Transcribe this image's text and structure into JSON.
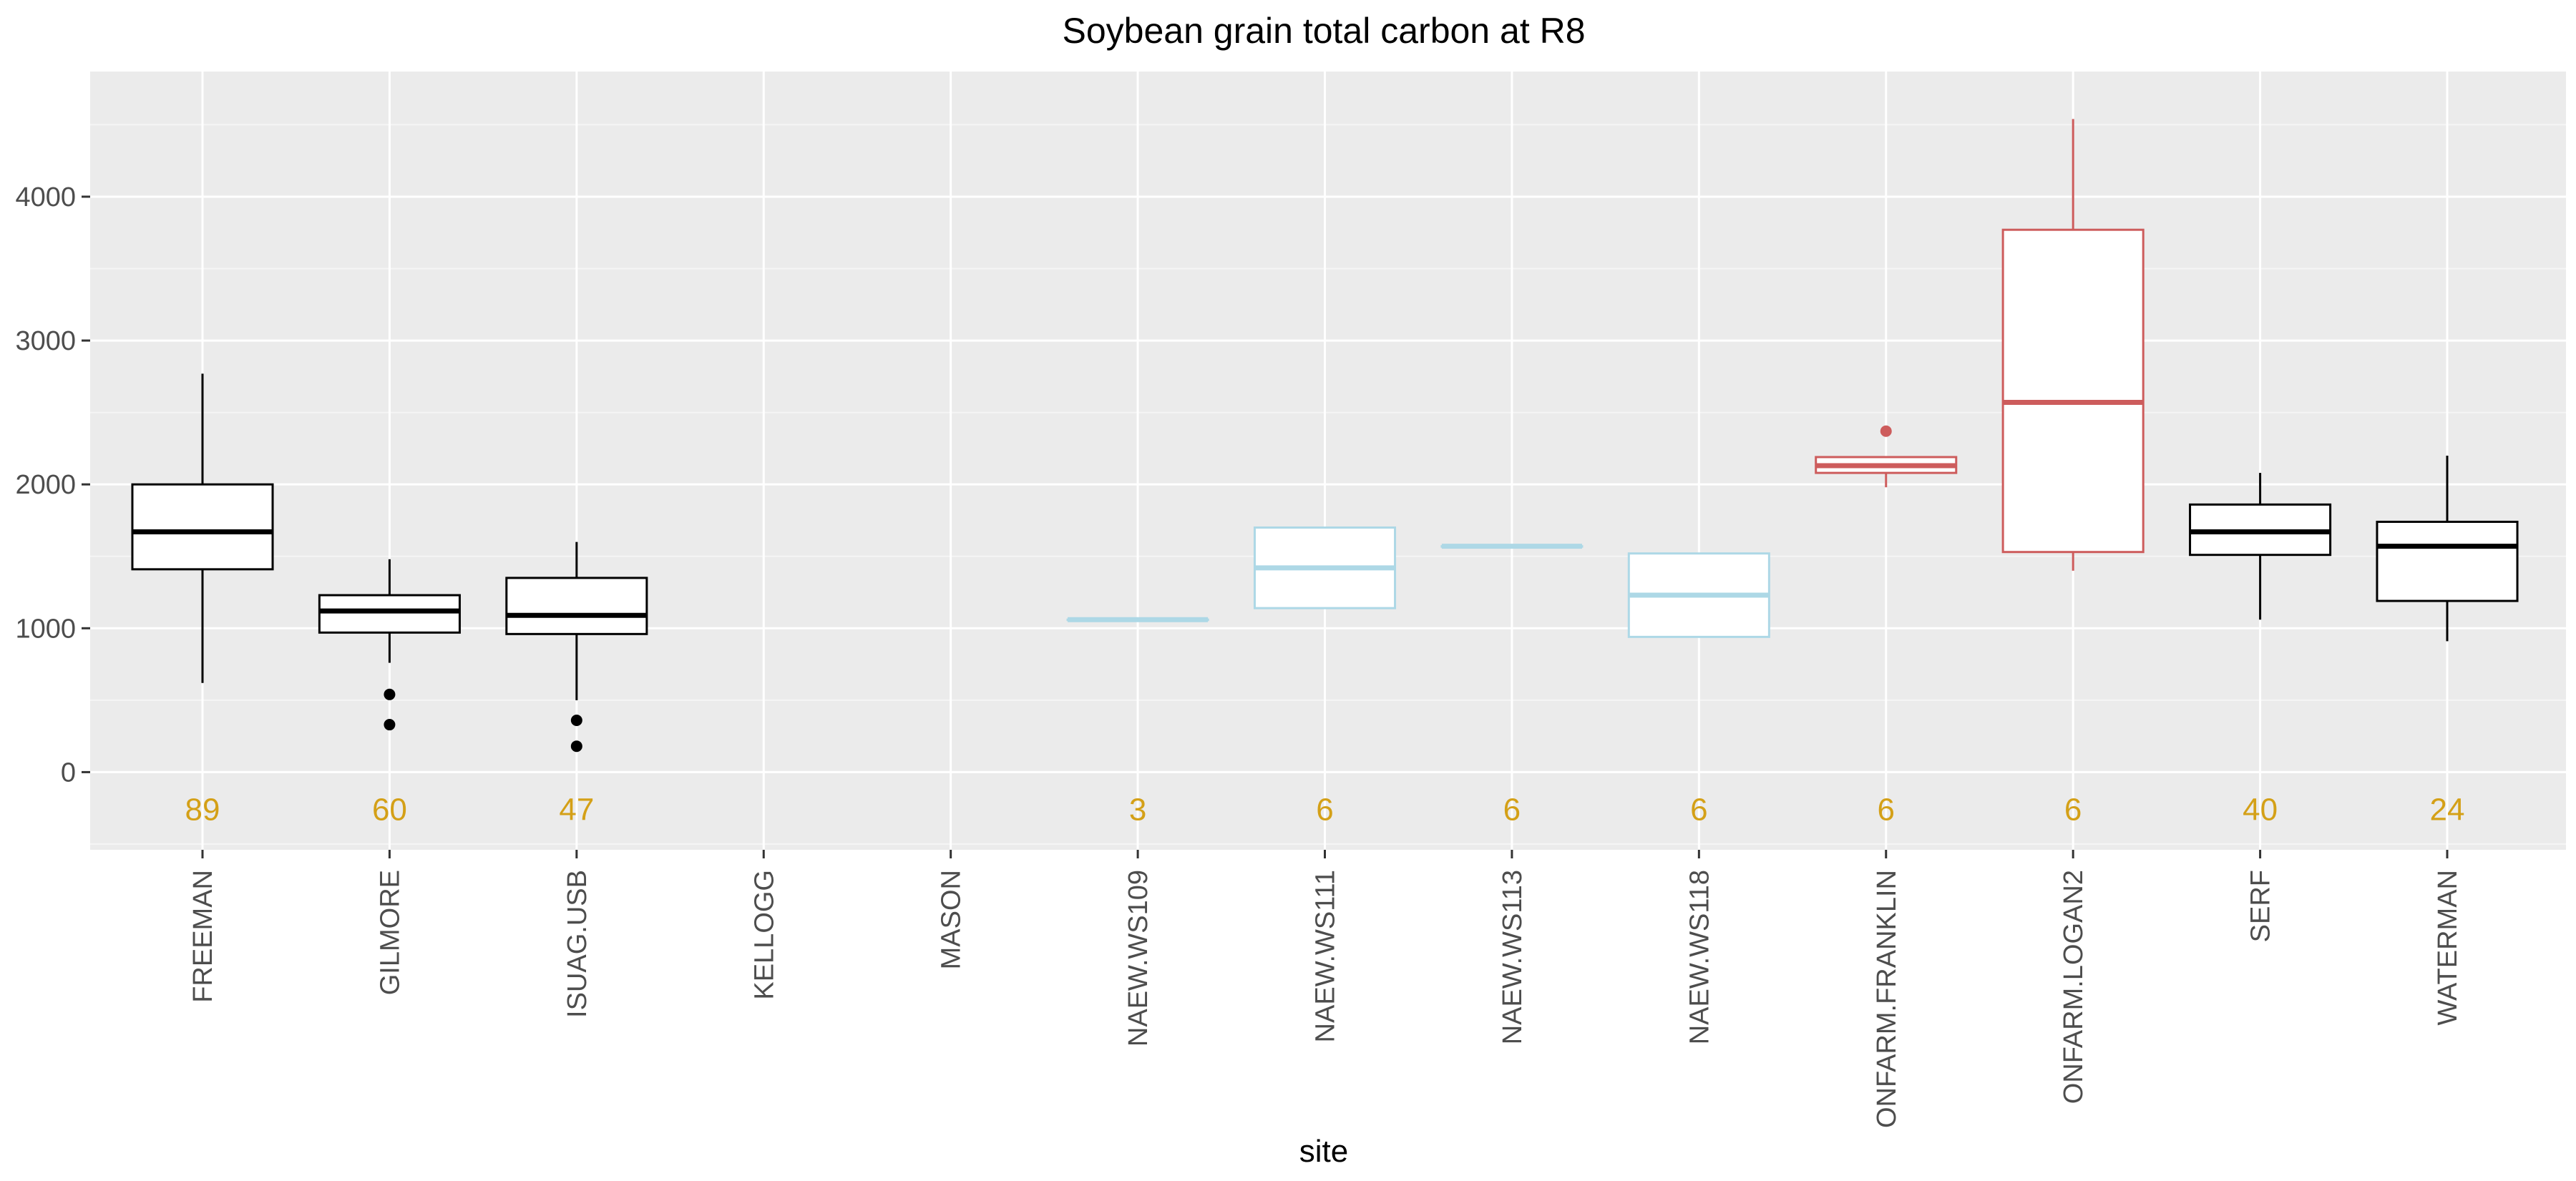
{
  "chart_data": {
    "type": "box",
    "title": "Soybean grain total carbon at R8",
    "xlabel": "site",
    "ylabel": "",
    "ylim": [
      -540,
      4870
    ],
    "yticks": [
      0,
      1000,
      2000,
      3000,
      4000
    ],
    "grid": true,
    "legend": "none",
    "colors": {
      "panel": "#ebebeb",
      "grid_major": "#ffffff",
      "grid_minor": "#f5f5f5",
      "count_text": "#d4a017",
      "tick_text": "#4d4d4d"
    },
    "categories": [
      "FREEMAN",
      "GILMORE",
      "ISUAG.USB",
      "KELLOGG",
      "MASON",
      "NAEW.WS109",
      "NAEW.WS111",
      "NAEW.WS113",
      "NAEW.WS118",
      "ONFARM.FRANKLIN",
      "ONFARM.LOGAN2",
      "SERF",
      "WATERMAN"
    ],
    "boxes": [
      {
        "site": "FREEMAN",
        "n": "89",
        "color": "#000000",
        "min": 620,
        "q1": 1410,
        "median": 1670,
        "q3": 2000,
        "max": 2770,
        "outliers": []
      },
      {
        "site": "GILMORE",
        "n": "60",
        "color": "#000000",
        "min": 760,
        "q1": 970,
        "median": 1120,
        "q3": 1230,
        "max": 1480,
        "outliers": [
          540,
          330
        ]
      },
      {
        "site": "ISUAG.USB",
        "n": "47",
        "color": "#000000",
        "min": 500,
        "q1": 960,
        "median": 1090,
        "q3": 1350,
        "max": 1600,
        "outliers": [
          360,
          180
        ]
      },
      {
        "site": "KELLOGG",
        "n": null,
        "color": null
      },
      {
        "site": "MASON",
        "n": null,
        "color": null
      },
      {
        "site": "NAEW.WS109",
        "n": "3",
        "color": "#add8e6",
        "min": 1060,
        "q1": 1060,
        "median": 1060,
        "q3": 1060,
        "max": 1060,
        "outliers": []
      },
      {
        "site": "NAEW.WS111",
        "n": "6",
        "color": "#add8e6",
        "min": 1140,
        "q1": 1140,
        "median": 1420,
        "q3": 1700,
        "max": 1700,
        "outliers": []
      },
      {
        "site": "NAEW.WS113",
        "n": "6",
        "color": "#add8e6",
        "min": 1570,
        "q1": 1570,
        "median": 1570,
        "q3": 1570,
        "max": 1570,
        "outliers": []
      },
      {
        "site": "NAEW.WS118",
        "n": "6",
        "color": "#add8e6",
        "min": 940,
        "q1": 940,
        "median": 1230,
        "q3": 1520,
        "max": 1520,
        "outliers": []
      },
      {
        "site": "ONFARM.FRANKLIN",
        "n": "6",
        "color": "#cd5c5c",
        "min": 1980,
        "q1": 2080,
        "median": 2130,
        "q3": 2190,
        "max": 2190,
        "outliers": [
          2370
        ]
      },
      {
        "site": "ONFARM.LOGAN2",
        "n": "6",
        "color": "#cd5c5c",
        "min": 1400,
        "q1": 1530,
        "median": 2570,
        "q3": 3770,
        "max": 4540,
        "outliers": []
      },
      {
        "site": "SERF",
        "n": "40",
        "color": "#000000",
        "min": 1060,
        "q1": 1510,
        "median": 1670,
        "q3": 1860,
        "max": 2080,
        "outliers": []
      },
      {
        "site": "WATERMAN",
        "n": "24",
        "color": "#000000",
        "min": 910,
        "q1": 1190,
        "median": 1570,
        "q3": 1740,
        "max": 2200,
        "outliers": []
      }
    ],
    "count_y": -260
  }
}
